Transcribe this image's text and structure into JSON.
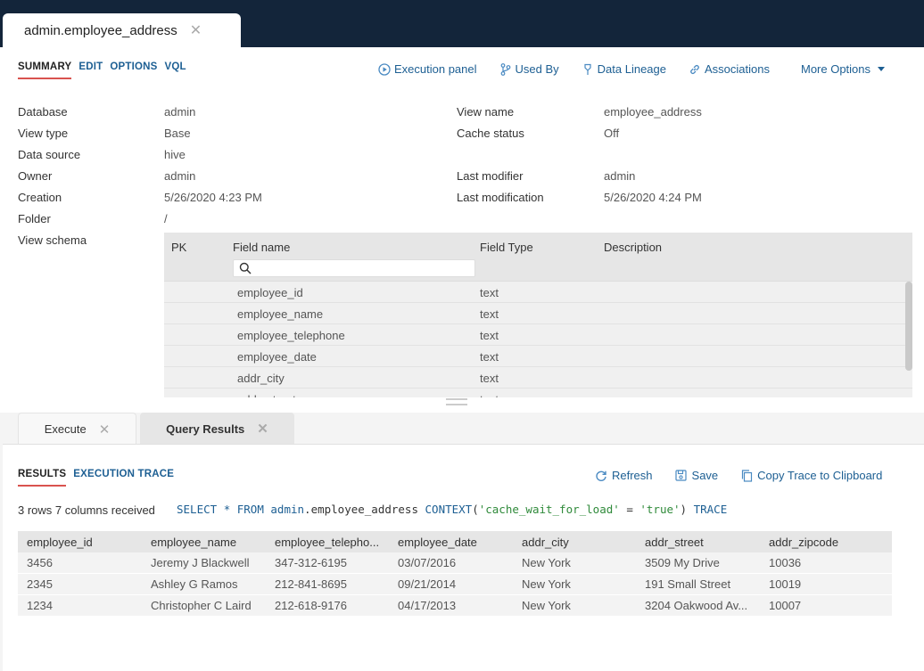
{
  "doc_tab": {
    "title": "admin.employee_address",
    "close": "✕"
  },
  "subtabs": [
    "SUMMARY",
    "EDIT",
    "OPTIONS",
    "VQL"
  ],
  "actions": {
    "execution_panel": "Execution panel",
    "used_by": "Used By",
    "data_lineage": "Data Lineage",
    "associations": "Associations",
    "more_options": "More Options"
  },
  "properties": {
    "database_label": "Database",
    "database": "admin",
    "view_type_label": "View type",
    "view_type": "Base",
    "data_source_label": "Data source",
    "data_source": "hive",
    "owner_label": "Owner",
    "owner": "admin",
    "creation_label": "Creation",
    "creation": "5/26/2020 4:23 PM",
    "folder_label": "Folder",
    "folder": "/",
    "view_schema_label": "View schema",
    "view_name_label": "View name",
    "view_name": "employee_address",
    "cache_status_label": "Cache status",
    "cache_status": "Off",
    "last_modifier_label": "Last modifier",
    "last_modifier": "admin",
    "last_modification_label": "Last modification",
    "last_modification": "5/26/2020 4:24 PM"
  },
  "schema": {
    "headers": {
      "pk": "PK",
      "field_name": "Field name",
      "field_type": "Field Type",
      "description": "Description"
    },
    "search_placeholder": "",
    "rows": [
      {
        "name": "employee_id",
        "type": "text"
      },
      {
        "name": "employee_name",
        "type": "text"
      },
      {
        "name": "employee_telephone",
        "type": "text"
      },
      {
        "name": "employee_date",
        "type": "text"
      },
      {
        "name": "addr_city",
        "type": "text"
      },
      {
        "name": "addr_street",
        "type": "text"
      }
    ]
  },
  "bottom_tabs": {
    "execute": "Execute",
    "query_results": "Query Results",
    "close": "✕"
  },
  "results": {
    "tabs": [
      "RESULTS",
      "EXECUTION TRACE"
    ],
    "refresh": "Refresh",
    "save": "Save",
    "copy_trace": "Copy Trace to Clipboard",
    "rows_info": "3 rows 7 columns received",
    "sql": {
      "select": "SELECT",
      "star": "*",
      "from": "FROM",
      "schema": "admin",
      "dot": ".",
      "table": "employee_address",
      "context": "CONTEXT",
      "open": "(",
      "key": "'cache_wait_for_load'",
      "eq": "=",
      "val": "'true'",
      "close": ")",
      "trace": "TRACE"
    },
    "columns": [
      "employee_id",
      "employee_name",
      "employee_telepho...",
      "employee_date",
      "addr_city",
      "addr_street",
      "addr_zipcode"
    ],
    "rows": [
      [
        "3456",
        "Jeremy J Blackwell",
        "347-312-6195",
        "03/07/2016",
        "New York",
        "3509 My Drive",
        "10036"
      ],
      [
        "2345",
        "Ashley G Ramos",
        "212-841-8695",
        "09/21/2014",
        "New York",
        "191 Small Street",
        "10019"
      ],
      [
        "1234",
        "Christopher C Laird",
        "212-618-9176",
        "04/17/2013",
        "New York",
        "3204 Oakwood Av...",
        "10007"
      ]
    ]
  }
}
